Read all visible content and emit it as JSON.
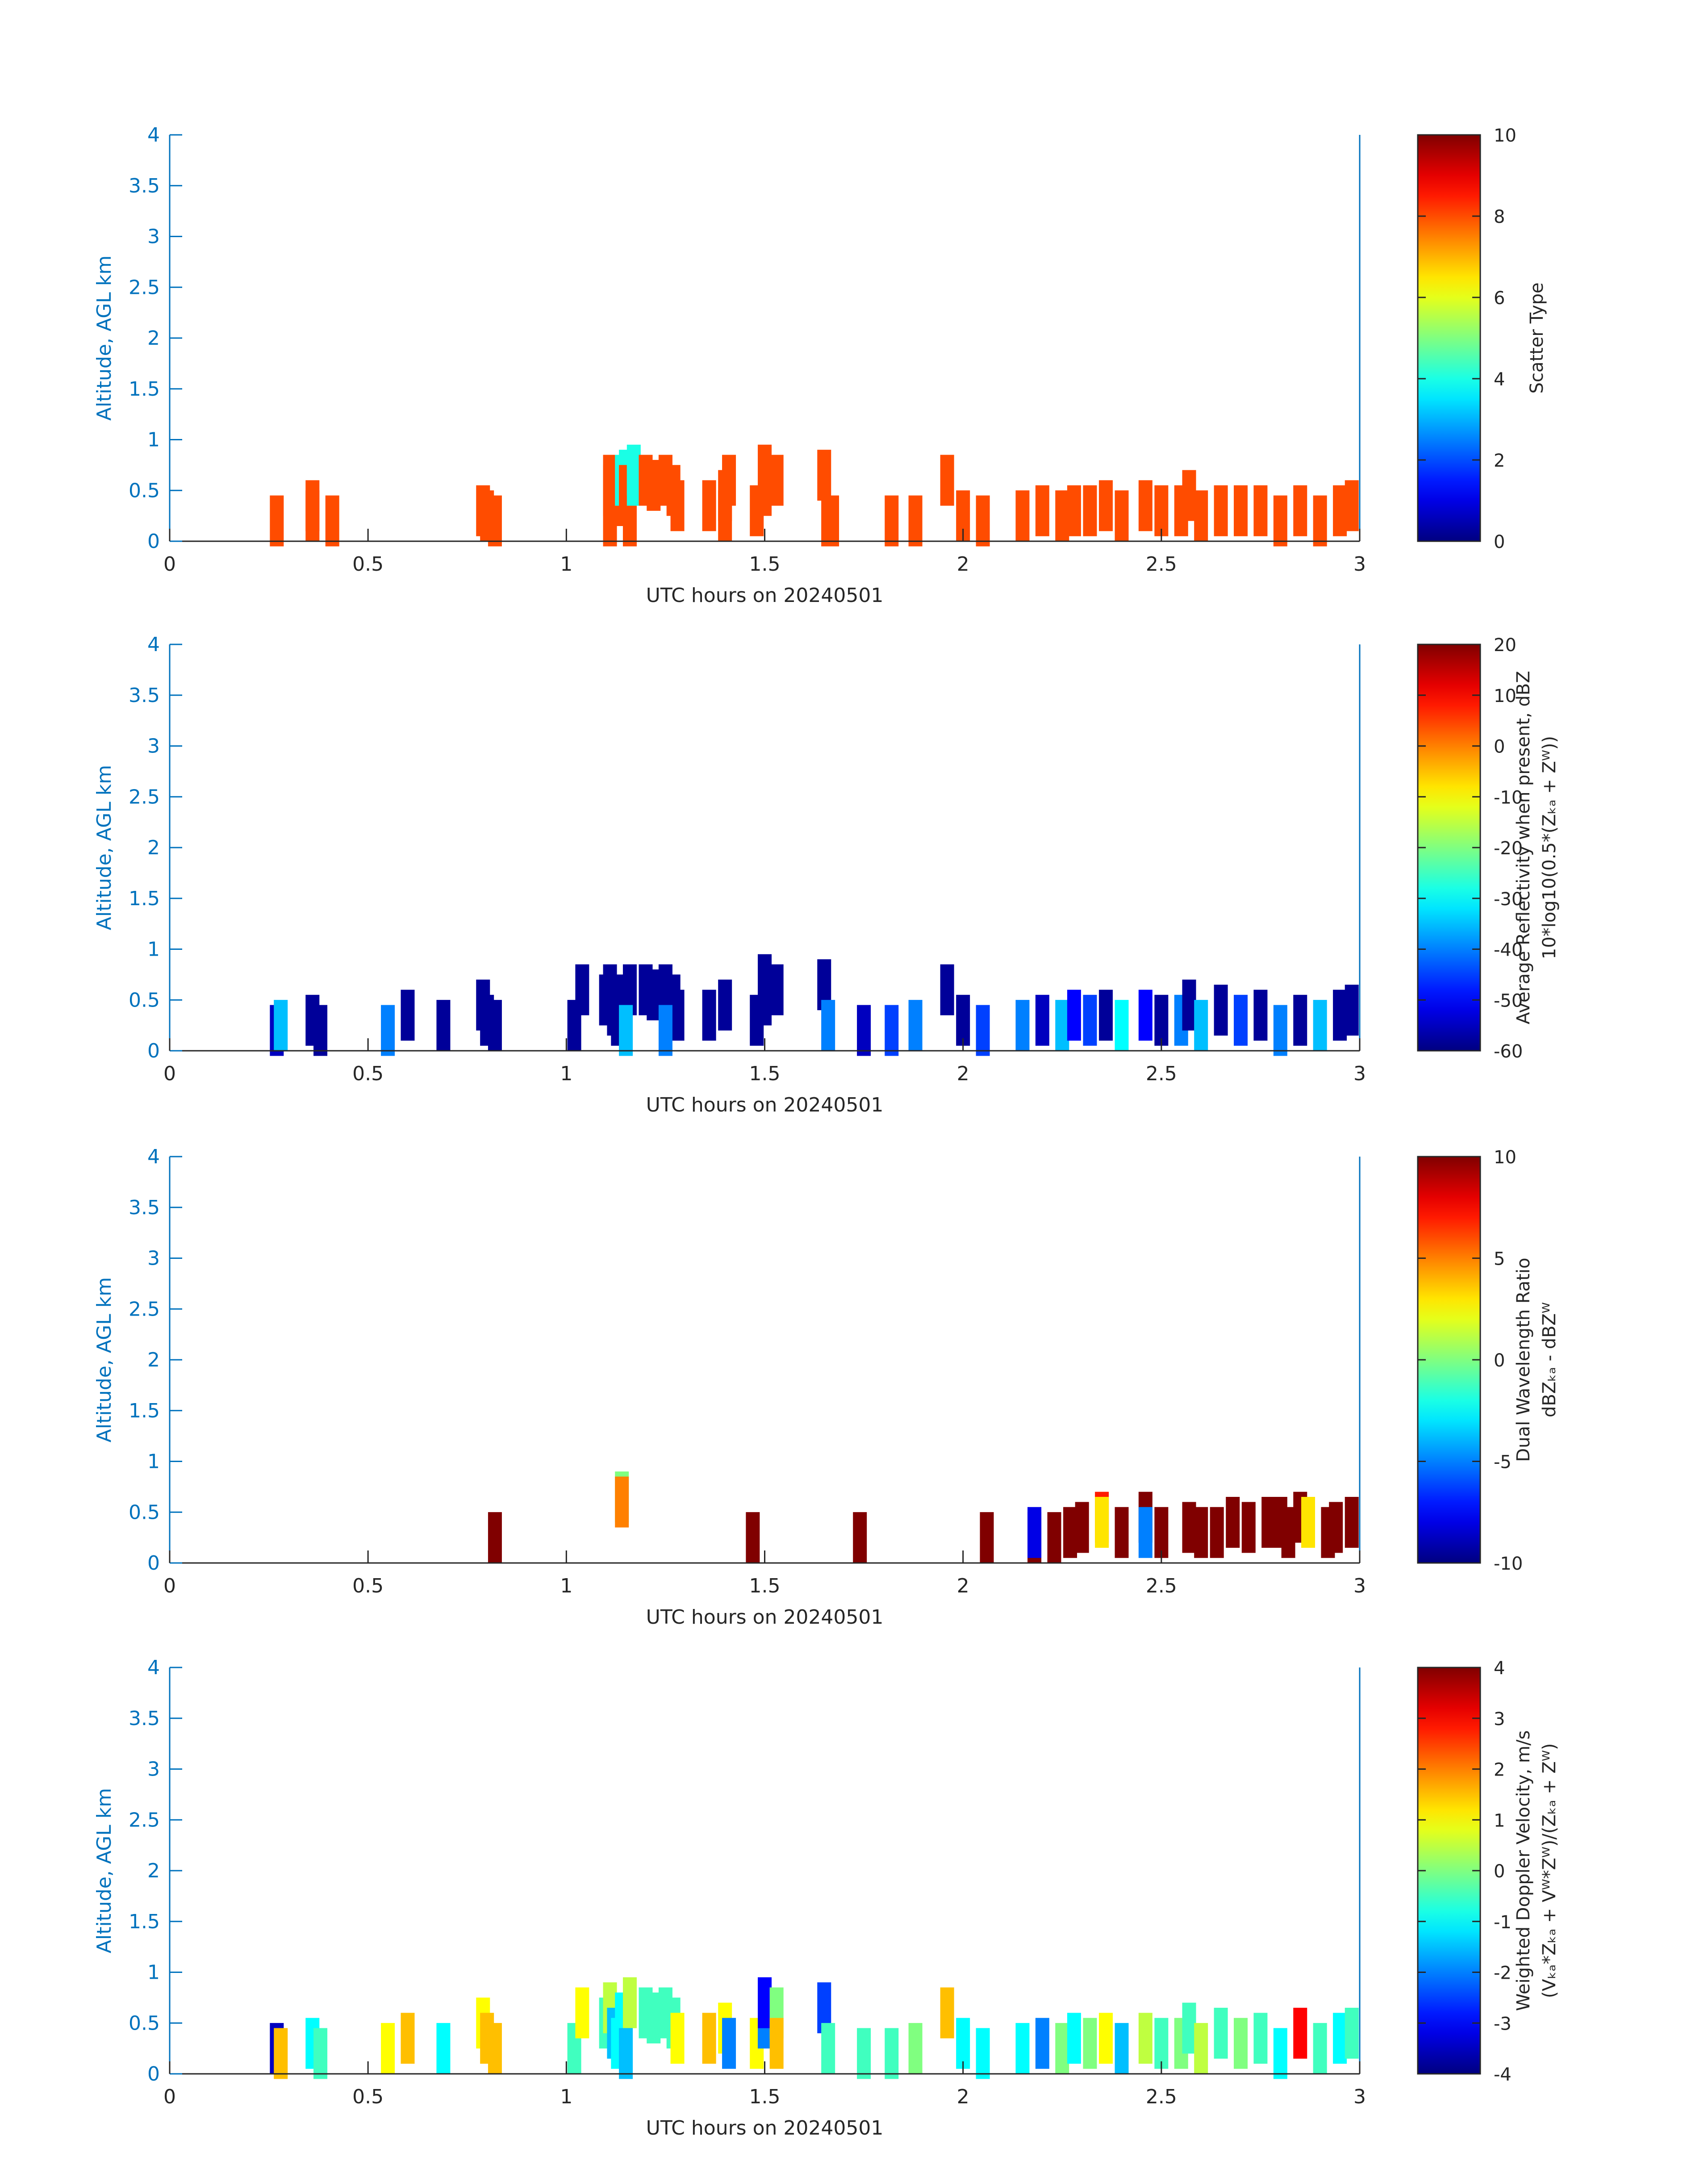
{
  "chart_data": [
    {
      "type": "heatmap",
      "xlabel": "UTC hours on 20240501",
      "ylabel": "Altitude, AGL km",
      "xlim": [
        0,
        3
      ],
      "ylim": [
        0,
        4
      ],
      "xticks": [
        0,
        0.5,
        1,
        1.5,
        2,
        2.5,
        3
      ],
      "xtick_labels": [
        "0",
        "0.5",
        "1",
        "1.5",
        "2",
        "2.5",
        "3"
      ],
      "yticks": [
        0,
        0.5,
        1,
        1.5,
        2,
        2.5,
        3,
        3.5,
        4
      ],
      "ytick_labels": [
        "0",
        "0.5",
        "1",
        "1.5",
        "2",
        "2.5",
        "3",
        "3.5",
        "4"
      ],
      "colormap": "jet",
      "colorbar": {
        "label_lines": [
          "Scatter Type"
        ],
        "range": [
          0,
          10
        ],
        "ticks": [
          0,
          2,
          4,
          6,
          8,
          10
        ],
        "tick_labels": [
          "0",
          "2",
          "4",
          "6",
          "8",
          "10"
        ]
      },
      "cells": [
        [
          0.27,
          0.2,
          8
        ],
        [
          0.36,
          0.25,
          8
        ],
        [
          0.36,
          0.35,
          8
        ],
        [
          0.41,
          0.2,
          8
        ],
        [
          0.79,
          0.3,
          8
        ],
        [
          0.8,
          0.25,
          8
        ],
        [
          0.82,
          0.2,
          8
        ],
        [
          1.11,
          0.2,
          8
        ],
        [
          1.11,
          0.5,
          8
        ],
        [
          1.11,
          0.6,
          8
        ],
        [
          1.12,
          0.55,
          8
        ],
        [
          1.13,
          0.45,
          8
        ],
        [
          1.13,
          0.4,
          8
        ],
        [
          1.14,
          0.6,
          4
        ],
        [
          1.15,
          0.65,
          4
        ],
        [
          1.15,
          0.5,
          8
        ],
        [
          1.16,
          0.2,
          8
        ],
        [
          1.17,
          0.7,
          4
        ],
        [
          1.17,
          0.6,
          4
        ],
        [
          1.2,
          0.6,
          8
        ],
        [
          1.22,
          0.55,
          8
        ],
        [
          1.25,
          0.6,
          8
        ],
        [
          1.27,
          0.5,
          8
        ],
        [
          1.28,
          0.35,
          8
        ],
        [
          1.36,
          0.35,
          8
        ],
        [
          1.4,
          0.25,
          8
        ],
        [
          1.4,
          0.45,
          8
        ],
        [
          1.41,
          0.6,
          8
        ],
        [
          1.48,
          0.3,
          8
        ],
        [
          1.5,
          0.5,
          8
        ],
        [
          1.5,
          0.7,
          8
        ],
        [
          1.53,
          0.6,
          8
        ],
        [
          1.65,
          0.65,
          8
        ],
        [
          1.66,
          0.2,
          8
        ],
        [
          1.67,
          0.2,
          8
        ],
        [
          1.82,
          0.2,
          8
        ],
        [
          1.88,
          0.2,
          8
        ],
        [
          1.96,
          0.6,
          8
        ],
        [
          2.0,
          0.25,
          8
        ],
        [
          2.05,
          0.2,
          8
        ],
        [
          2.15,
          0.25,
          8
        ],
        [
          2.2,
          0.3,
          8
        ],
        [
          2.25,
          0.25,
          8
        ],
        [
          2.28,
          0.3,
          8
        ],
        [
          2.32,
          0.3,
          8
        ],
        [
          2.36,
          0.35,
          8
        ],
        [
          2.4,
          0.25,
          8
        ],
        [
          2.46,
          0.35,
          8
        ],
        [
          2.5,
          0.3,
          8
        ],
        [
          2.55,
          0.3,
          8
        ],
        [
          2.57,
          0.45,
          8
        ],
        [
          2.6,
          0.25,
          8
        ],
        [
          2.65,
          0.3,
          8
        ],
        [
          2.7,
          0.3,
          8
        ],
        [
          2.75,
          0.3,
          8
        ],
        [
          2.8,
          0.2,
          8
        ],
        [
          2.85,
          0.3,
          8
        ],
        [
          2.9,
          0.2,
          8
        ],
        [
          2.95,
          0.3,
          8
        ],
        [
          2.98,
          0.35,
          8
        ]
      ]
    },
    {
      "type": "heatmap",
      "xlabel": "UTC hours on 20240501",
      "ylabel": "Altitude, AGL km",
      "xlim": [
        0,
        3
      ],
      "ylim": [
        0,
        4
      ],
      "xticks": [
        0,
        0.5,
        1,
        1.5,
        2,
        2.5,
        3
      ],
      "xtick_labels": [
        "0",
        "0.5",
        "1",
        "1.5",
        "2",
        "2.5",
        "3"
      ],
      "yticks": [
        0,
        0.5,
        1,
        1.5,
        2,
        2.5,
        3,
        3.5,
        4
      ],
      "ytick_labels": [
        "0",
        "0.5",
        "1",
        "1.5",
        "2",
        "2.5",
        "3",
        "3.5",
        "4"
      ],
      "colormap": "jet",
      "colorbar": {
        "label_lines": [
          "Average Reflectivity when present, dBZ",
          "10*log10(0.5*(Zₖₐ + Zᵂ))"
        ],
        "range": [
          -60,
          20
        ],
        "ticks": [
          -60,
          -50,
          -40,
          -30,
          -20,
          -10,
          0,
          10,
          20
        ],
        "tick_labels": [
          "-60",
          "-50",
          "-40",
          "-30",
          "-20",
          "-10",
          "0",
          "10",
          "20"
        ]
      },
      "cells": [
        [
          0.27,
          0.2,
          -55
        ],
        [
          0.28,
          0.25,
          -35
        ],
        [
          0.36,
          0.3,
          -58
        ],
        [
          0.38,
          0.2,
          -58
        ],
        [
          0.6,
          0.35,
          -58
        ],
        [
          0.55,
          0.2,
          -40
        ],
        [
          0.69,
          0.25,
          -58
        ],
        [
          0.79,
          0.45,
          -58
        ],
        [
          0.8,
          0.3,
          -58
        ],
        [
          0.82,
          0.25,
          -58
        ],
        [
          1.02,
          0.25,
          -58
        ],
        [
          1.04,
          0.6,
          -58
        ],
        [
          1.1,
          0.5,
          -58
        ],
        [
          1.11,
          0.6,
          -58
        ],
        [
          1.12,
          0.4,
          -58
        ],
        [
          1.13,
          0.3,
          -58
        ],
        [
          1.14,
          0.5,
          -58
        ],
        [
          1.16,
          0.6,
          -58
        ],
        [
          1.15,
          0.2,
          -35
        ],
        [
          1.2,
          0.6,
          -58
        ],
        [
          1.22,
          0.55,
          -58
        ],
        [
          1.25,
          0.6,
          -58
        ],
        [
          1.27,
          0.5,
          -58
        ],
        [
          1.28,
          0.35,
          -58
        ],
        [
          1.36,
          0.35,
          -58
        ],
        [
          1.4,
          0.45,
          -58
        ],
        [
          1.48,
          0.3,
          -58
        ],
        [
          1.5,
          0.5,
          -58
        ],
        [
          1.5,
          0.7,
          -58
        ],
        [
          1.53,
          0.6,
          -58
        ],
        [
          1.25,
          0.2,
          -40
        ],
        [
          1.65,
          0.65,
          -58
        ],
        [
          1.66,
          0.25,
          -40
        ],
        [
          1.75,
          0.2,
          -55
        ],
        [
          1.82,
          0.2,
          -45
        ],
        [
          1.88,
          0.25,
          -40
        ],
        [
          1.96,
          0.6,
          -58
        ],
        [
          2.0,
          0.3,
          -58
        ],
        [
          2.05,
          0.2,
          -45
        ],
        [
          2.15,
          0.25,
          -40
        ],
        [
          2.2,
          0.3,
          -55
        ],
        [
          2.25,
          0.25,
          -35
        ],
        [
          2.28,
          0.35,
          -50
        ],
        [
          2.32,
          0.3,
          -45
        ],
        [
          2.36,
          0.35,
          -58
        ],
        [
          2.4,
          0.25,
          -30
        ],
        [
          2.46,
          0.35,
          -50
        ],
        [
          2.5,
          0.3,
          -58
        ],
        [
          2.55,
          0.3,
          -40
        ],
        [
          2.57,
          0.45,
          -58
        ],
        [
          2.6,
          0.25,
          -35
        ],
        [
          2.65,
          0.4,
          -58
        ],
        [
          2.7,
          0.3,
          -45
        ],
        [
          2.75,
          0.35,
          -58
        ],
        [
          2.8,
          0.2,
          -40
        ],
        [
          2.85,
          0.3,
          -58
        ],
        [
          2.9,
          0.25,
          -35
        ],
        [
          2.95,
          0.35,
          -58
        ],
        [
          2.98,
          0.4,
          -58
        ]
      ]
    },
    {
      "type": "heatmap",
      "xlabel": "UTC hours on 20240501",
      "ylabel": "Altitude, AGL km",
      "xlim": [
        0,
        3
      ],
      "ylim": [
        0,
        4
      ],
      "xticks": [
        0,
        0.5,
        1,
        1.5,
        2,
        2.5,
        3
      ],
      "xtick_labels": [
        "0",
        "0.5",
        "1",
        "1.5",
        "2",
        "2.5",
        "3"
      ],
      "yticks": [
        0,
        0.5,
        1,
        1.5,
        2,
        2.5,
        3,
        3.5,
        4
      ],
      "ytick_labels": [
        "0",
        "0.5",
        "1",
        "1.5",
        "2",
        "2.5",
        "3",
        "3.5",
        "4"
      ],
      "colormap": "jet",
      "colorbar": {
        "label_lines": [
          "Dual Wavelength Ratio",
          "dBZₖₐ - dBZᵂ"
        ],
        "range": [
          -10,
          10
        ],
        "ticks": [
          -10,
          -5,
          0,
          5,
          10
        ],
        "tick_labels": [
          "-10",
          "-5",
          "0",
          "5",
          "10"
        ]
      },
      "cells": [
        [
          0.82,
          0.25,
          10
        ],
        [
          1.14,
          0.65,
          0
        ],
        [
          1.14,
          0.6,
          5
        ],
        [
          1.47,
          0.25,
          10
        ],
        [
          1.74,
          0.25,
          10
        ],
        [
          2.06,
          0.25,
          10
        ],
        [
          2.18,
          0.25,
          10
        ],
        [
          2.18,
          0.3,
          -8
        ],
        [
          2.23,
          0.25,
          10
        ],
        [
          2.27,
          0.3,
          10
        ],
        [
          2.3,
          0.35,
          10
        ],
        [
          2.35,
          0.45,
          7
        ],
        [
          2.35,
          0.4,
          3
        ],
        [
          2.4,
          0.3,
          10
        ],
        [
          2.46,
          0.45,
          10
        ],
        [
          2.46,
          0.3,
          -5
        ],
        [
          2.5,
          0.3,
          10
        ],
        [
          2.57,
          0.35,
          10
        ],
        [
          2.6,
          0.3,
          10
        ],
        [
          2.64,
          0.3,
          10
        ],
        [
          2.68,
          0.4,
          10
        ],
        [
          2.72,
          0.35,
          10
        ],
        [
          2.77,
          0.4,
          10
        ],
        [
          2.8,
          0.4,
          10
        ],
        [
          2.82,
          0.3,
          10
        ],
        [
          2.85,
          0.45,
          10
        ],
        [
          2.87,
          0.4,
          3
        ],
        [
          2.92,
          0.3,
          10
        ],
        [
          2.94,
          0.35,
          10
        ],
        [
          2.98,
          0.4,
          10
        ]
      ]
    },
    {
      "type": "heatmap",
      "xlabel": "UTC hours on 20240501",
      "ylabel": "Altitude, AGL km",
      "xlim": [
        0,
        3
      ],
      "ylim": [
        0,
        4
      ],
      "xticks": [
        0,
        0.5,
        1,
        1.5,
        2,
        2.5,
        3
      ],
      "xtick_labels": [
        "0",
        "0.5",
        "1",
        "1.5",
        "2",
        "2.5",
        "3"
      ],
      "yticks": [
        0,
        0.5,
        1,
        1.5,
        2,
        2.5,
        3,
        3.5,
        4
      ],
      "ytick_labels": [
        "0",
        "0.5",
        "1",
        "1.5",
        "2",
        "2.5",
        "3",
        "3.5",
        "4"
      ],
      "colormap": "jet",
      "colorbar": {
        "label_lines": [
          "Weighted Doppler Velocity, m/s",
          "(Vₖₐ*Zₖₐ + Vᵂ*Zᵂ)/(Zₖₐ + Zᵂ)"
        ],
        "range": [
          -4,
          4
        ],
        "ticks": [
          -4,
          -3,
          -2,
          -1,
          0,
          1,
          2,
          3,
          4
        ],
        "tick_labels": [
          "-4",
          "-3",
          "-2",
          "-1",
          "0",
          "1",
          "2",
          "3",
          "4"
        ]
      },
      "cells": [
        [
          0.27,
          0.25,
          -3.5
        ],
        [
          0.28,
          0.2,
          1.5
        ],
        [
          0.36,
          0.3,
          -1
        ],
        [
          0.38,
          0.2,
          -0.5
        ],
        [
          0.55,
          0.25,
          1
        ],
        [
          0.6,
          0.35,
          1.5
        ],
        [
          0.69,
          0.25,
          -1
        ],
        [
          0.79,
          0.5,
          1
        ],
        [
          0.8,
          0.35,
          1.5
        ],
        [
          0.82,
          0.25,
          1.5
        ],
        [
          1.02,
          0.25,
          -0.5
        ],
        [
          1.04,
          0.6,
          1
        ],
        [
          1.1,
          0.5,
          -0.5
        ],
        [
          1.11,
          0.65,
          0.5
        ],
        [
          1.12,
          0.4,
          -1.5
        ],
        [
          1.13,
          0.3,
          -1
        ],
        [
          1.14,
          0.55,
          -1
        ],
        [
          1.16,
          0.7,
          0.5
        ],
        [
          1.15,
          0.2,
          -1.5
        ],
        [
          1.2,
          0.6,
          -0.5
        ],
        [
          1.22,
          0.55,
          -0.5
        ],
        [
          1.25,
          0.6,
          -0.5
        ],
        [
          1.27,
          0.5,
          -0.5
        ],
        [
          1.28,
          0.35,
          1
        ],
        [
          1.36,
          0.35,
          1.5
        ],
        [
          1.4,
          0.45,
          1
        ],
        [
          1.41,
          0.3,
          -2
        ],
        [
          1.48,
          0.3,
          1
        ],
        [
          1.5,
          0.5,
          -2
        ],
        [
          1.5,
          0.7,
          -3
        ],
        [
          1.53,
          0.6,
          0
        ],
        [
          1.53,
          0.3,
          1.5
        ],
        [
          1.65,
          0.65,
          -2.5
        ],
        [
          1.66,
          0.25,
          -0.5
        ],
        [
          1.75,
          0.2,
          -0.5
        ],
        [
          1.82,
          0.2,
          -0.5
        ],
        [
          1.88,
          0.25,
          0
        ],
        [
          1.96,
          0.6,
          1.5
        ],
        [
          2.0,
          0.3,
          -1
        ],
        [
          2.05,
          0.2,
          -1
        ],
        [
          2.15,
          0.25,
          -1
        ],
        [
          2.2,
          0.3,
          -2
        ],
        [
          2.25,
          0.25,
          0
        ],
        [
          2.28,
          0.35,
          -1
        ],
        [
          2.32,
          0.3,
          0
        ],
        [
          2.36,
          0.35,
          1
        ],
        [
          2.4,
          0.25,
          -1.5
        ],
        [
          2.46,
          0.35,
          0.5
        ],
        [
          2.5,
          0.3,
          -0.5
        ],
        [
          2.55,
          0.3,
          0
        ],
        [
          2.57,
          0.45,
          -0.5
        ],
        [
          2.6,
          0.25,
          0.5
        ],
        [
          2.65,
          0.4,
          -0.5
        ],
        [
          2.7,
          0.3,
          0
        ],
        [
          2.75,
          0.35,
          -0.5
        ],
        [
          2.8,
          0.2,
          -1
        ],
        [
          2.85,
          0.4,
          3
        ],
        [
          2.9,
          0.25,
          -0.5
        ],
        [
          2.95,
          0.35,
          -1
        ],
        [
          2.98,
          0.4,
          -0.5
        ]
      ]
    }
  ]
}
